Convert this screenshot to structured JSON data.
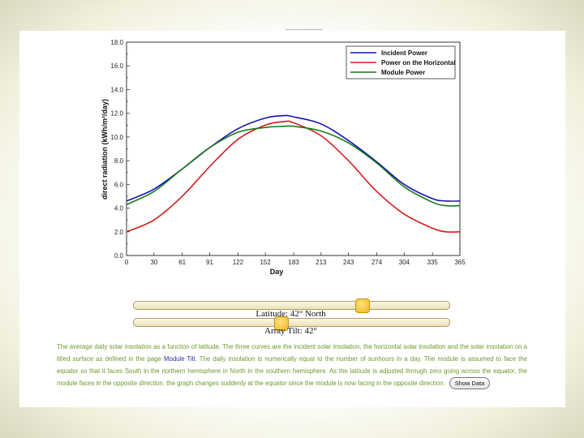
{
  "chart_data": {
    "type": "line",
    "xlabel": "Day",
    "ylabel": "direct radiation (kWh/m²/day)",
    "xlim": [
      0,
      365
    ],
    "ylim": [
      0,
      18
    ],
    "x_ticks": [
      0,
      30,
      61,
      91,
      122,
      152,
      183,
      213,
      243,
      274,
      304,
      335,
      365
    ],
    "x_tick_labels": [
      "0",
      "30",
      "61",
      "91",
      "122",
      "152",
      "183",
      "213",
      "243",
      "274",
      "304",
      "335",
      "365"
    ],
    "y_ticks": [
      0,
      2,
      4,
      6,
      8,
      10,
      12,
      14,
      16,
      18
    ],
    "y_tick_labels": [
      "0.0",
      "2.0",
      "4.0",
      "6.0",
      "8.0",
      "10.0",
      "12.0",
      "14.0",
      "16.0",
      "18.0"
    ],
    "legend": "top-right",
    "x": [
      0,
      30,
      61,
      91,
      122,
      152,
      172,
      183,
      213,
      243,
      274,
      304,
      335,
      350,
      365
    ],
    "series": [
      {
        "name": "Incident Power",
        "color": "#1414b4",
        "values": [
          4.6,
          5.6,
          7.3,
          9.1,
          10.7,
          11.6,
          11.8,
          11.7,
          11.1,
          9.7,
          7.9,
          6.0,
          4.8,
          4.6,
          4.6
        ]
      },
      {
        "name": "Power on the Horizontal",
        "color": "#d21e1e",
        "values": [
          2.0,
          3.0,
          5.0,
          7.5,
          9.8,
          11.0,
          11.3,
          11.2,
          10.1,
          8.0,
          5.4,
          3.5,
          2.3,
          2.0,
          2.0
        ]
      },
      {
        "name": "Module Power",
        "color": "#1a7a1a",
        "values": [
          4.3,
          5.4,
          7.3,
          9.1,
          10.4,
          10.8,
          10.9,
          10.9,
          10.5,
          9.5,
          7.8,
          5.8,
          4.5,
          4.2,
          4.2
        ]
      }
    ]
  },
  "controls": {
    "latitude_label": "Latitude: 42° North",
    "latitude_value": 42,
    "latitude_range": [
      -90,
      90
    ],
    "tilt_label": "Array Tilt: 42°",
    "tilt_value": 42,
    "tilt_range": [
      0,
      90
    ]
  },
  "description": {
    "part1": "The average daily solar insolation as a function of latitude. The three curves are the incident solar insolation, the horizontal solar insolation and the solar insolation on a titled surface as defined in the page ",
    "link": "Module Tilt",
    "part2": ". The daily insolation is numerically equal to the number of sunhours in a day. The module is assumed to face the equator so that it faces South in the northern hemisphere in North in the southern hemisphere. As the latitude is adjusted through zero going across the equator, the module faces in the opposite direction. the graph changes suddenly at the equator since the module is now facing in the opposite direction.",
    "button": "Show Data"
  }
}
